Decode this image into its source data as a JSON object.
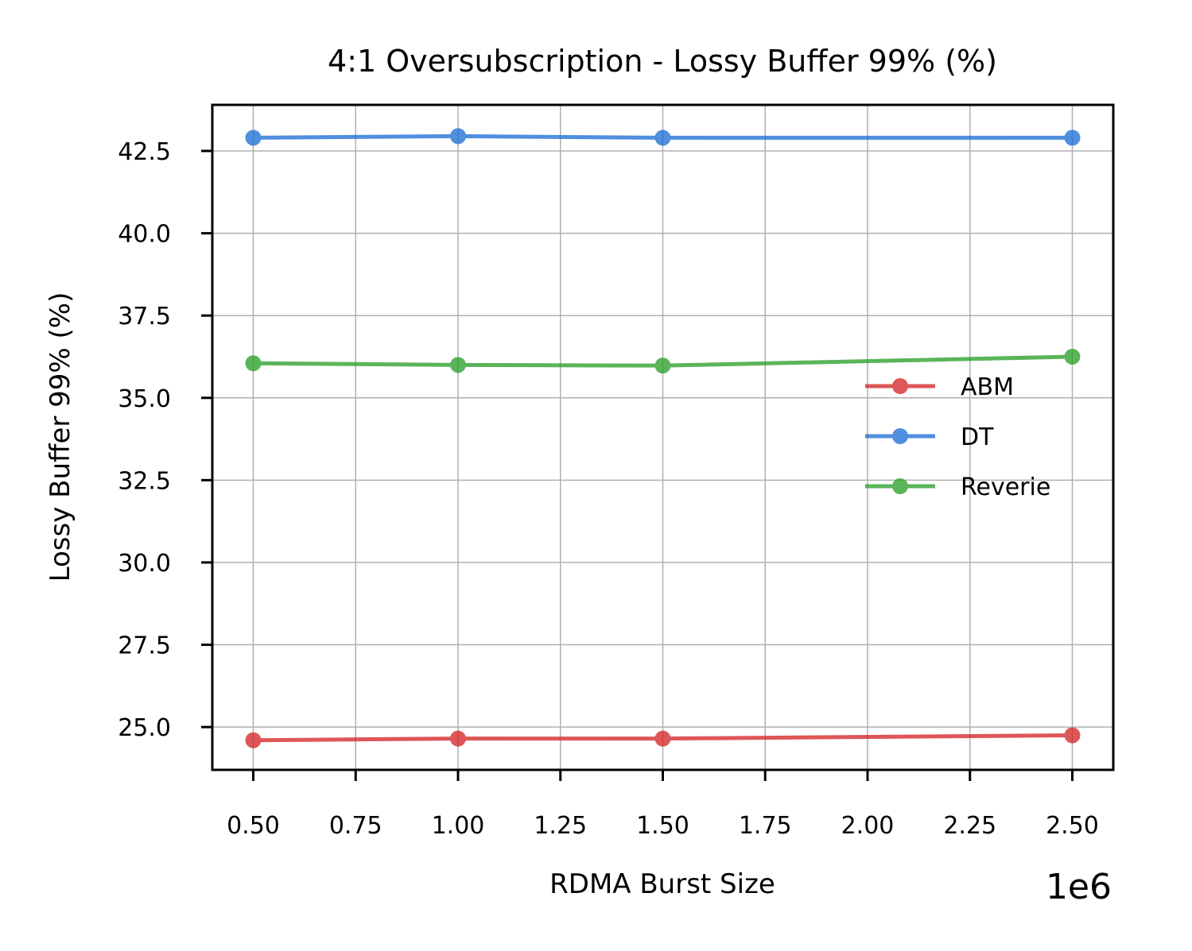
{
  "chart_data": {
    "type": "line",
    "title": "4:1 Oversubscription - Lossy Buffer 99% (%)",
    "xlabel": "RDMA Burst Size",
    "ylabel": "Lossy Buffer 99% (%)",
    "x_offset_label": "1e6",
    "x": [
      0.5,
      1.0,
      1.5,
      2.5
    ],
    "xlim": [
      0.4,
      2.6
    ],
    "ylim": [
      23.7,
      43.9
    ],
    "x_ticks": [
      0.5,
      0.75,
      1.0,
      1.25,
      1.5,
      1.75,
      2.0,
      2.25,
      2.5
    ],
    "x_tick_labels": [
      "0.50",
      "0.75",
      "1.00",
      "1.25",
      "1.50",
      "1.75",
      "2.00",
      "2.25",
      "2.50"
    ],
    "y_ticks": [
      25.0,
      27.5,
      30.0,
      32.5,
      35.0,
      37.5,
      40.0,
      42.5
    ],
    "y_tick_labels": [
      "25.0",
      "27.5",
      "30.0",
      "32.5",
      "35.0",
      "37.5",
      "40.0",
      "42.5"
    ],
    "grid": true,
    "legend_position": "center-right",
    "series": [
      {
        "name": "ABM",
        "color": "#d62728",
        "values": [
          24.6,
          24.65,
          24.65,
          24.75
        ]
      },
      {
        "name": "DT",
        "color": "#1f6fd6",
        "values": [
          42.9,
          42.95,
          42.9,
          42.9
        ]
      },
      {
        "name": "Reverie",
        "color": "#2ca02c",
        "values": [
          36.05,
          36.0,
          35.98,
          36.25
        ]
      }
    ]
  }
}
